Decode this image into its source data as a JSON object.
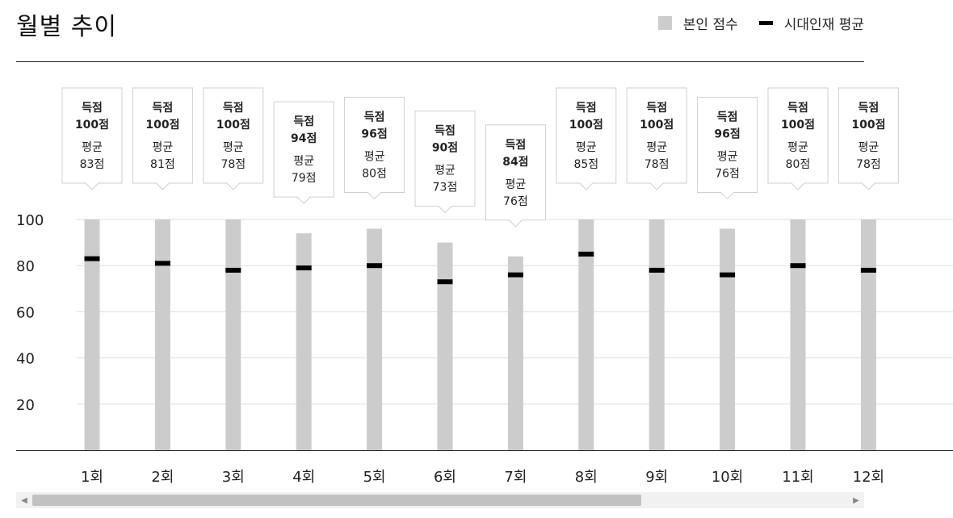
{
  "title": "월별 추이",
  "legend": {
    "score_label": "본인 점수",
    "average_label": "시대인재 평균"
  },
  "colors": {
    "bar": "#cccccc",
    "average": "#000000",
    "grid": "#dddddd",
    "axis": "#222222"
  },
  "chart_data": {
    "type": "bar",
    "categories": [
      "1회",
      "2회",
      "3회",
      "4회",
      "5회",
      "6회",
      "7회",
      "8회",
      "9회",
      "10회",
      "11회",
      "12회"
    ],
    "series": [
      {
        "name": "본인 점수",
        "values": [
          100,
          100,
          100,
          94,
          96,
          90,
          84,
          100,
          100,
          96,
          100,
          100
        ]
      },
      {
        "name": "시대인재 평균",
        "values": [
          83,
          81,
          78,
          79,
          80,
          73,
          76,
          85,
          78,
          76,
          80,
          78
        ]
      }
    ],
    "y_ticks": [
      20,
      40,
      60,
      80,
      100
    ],
    "ylim": [
      0,
      100
    ],
    "grid": true,
    "legend_position": "top-right",
    "tooltip_score_title": "득점",
    "tooltip_avg_title": "평균",
    "unit": "점",
    "tooltips": [
      {
        "score": "100점",
        "avg": "83점"
      },
      {
        "score": "100점",
        "avg": "81점"
      },
      {
        "score": "100점",
        "avg": "78점"
      },
      {
        "score": "94점",
        "avg": "79점"
      },
      {
        "score": "96점",
        "avg": "80점"
      },
      {
        "score": "90점",
        "avg": "73점"
      },
      {
        "score": "84점",
        "avg": "76점"
      },
      {
        "score": "100점",
        "avg": "85점"
      },
      {
        "score": "100점",
        "avg": "78점"
      },
      {
        "score": "96점",
        "avg": "76점"
      },
      {
        "score": "100점",
        "avg": "80점"
      },
      {
        "score": "100점",
        "avg": "78점"
      }
    ]
  },
  "scrollbar": {
    "left_arrow": "◀",
    "right_arrow": "▶"
  }
}
